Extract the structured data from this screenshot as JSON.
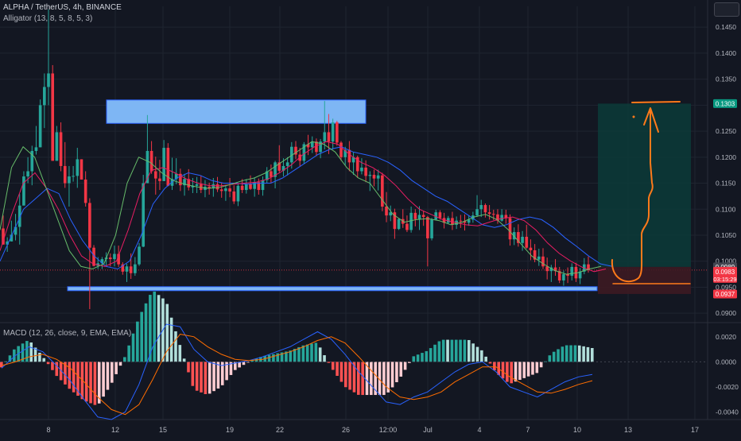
{
  "header": {
    "symbol": "ALPHA / TetherUS, 4h, BINANCE",
    "indicator": "Alligator (13, 8, 5, 8, 5, 3)"
  },
  "macd_label": "MACD (12, 26, close, 9, EMA, EMA)",
  "colors": {
    "background": "#131722",
    "up": "#26a69a",
    "down": "#f23645",
    "jaw": "#2962ff",
    "teeth": "#e91e63",
    "lips": "#66bb6a",
    "zone": "#7eb6f4",
    "profit": "#0c3b38",
    "loss": "#3d1a22",
    "drawing": "#ff7a1a"
  },
  "price_badges": {
    "target": "0.1303",
    "current": "0.0989",
    "last": "0.0983",
    "countdown": "03:15:29",
    "stop": "0.0937"
  },
  "chart_data": {
    "type": "candlestick",
    "price_axis": {
      "ticks": [
        "0.1450",
        "0.1400",
        "0.1350",
        "0.1300",
        "0.1250",
        "0.1200",
        "0.1150",
        "0.1100",
        "0.1050",
        "0.1000",
        "0.0950",
        "0.0900"
      ],
      "range": [
        0.0885,
        0.149
      ]
    },
    "macd_axis": {
      "ticks": [
        "0.0020",
        "0.0000",
        "-0.0020",
        "-0.0040"
      ],
      "range": [
        -0.0046,
        0.003
      ]
    },
    "time_axis": [
      "8",
      "12",
      "15",
      "19",
      "22",
      "26",
      "12:00",
      "Jul",
      "4",
      "7",
      "10",
      "13",
      "17"
    ],
    "candles": [
      [
        0.1063,
        0.1088,
        0.1032,
        0.1032
      ],
      [
        0.1032,
        0.1046,
        0.1018,
        0.1038
      ],
      [
        0.1038,
        0.1078,
        0.1038,
        0.1051
      ],
      [
        0.1051,
        0.1091,
        0.104,
        0.1066
      ],
      [
        0.1066,
        0.1129,
        0.1032,
        0.1107
      ],
      [
        0.1107,
        0.1173,
        0.1107,
        0.1163
      ],
      [
        0.1163,
        0.12,
        0.115,
        0.1173
      ],
      [
        0.1173,
        0.1222,
        0.1146,
        0.1212
      ],
      [
        0.1212,
        0.126,
        0.1205,
        0.1219
      ],
      [
        0.1219,
        0.1311,
        0.1219,
        0.13
      ],
      [
        0.13,
        0.1361,
        0.1256,
        0.1335
      ],
      [
        0.1335,
        0.1484,
        0.13,
        0.1361
      ],
      [
        0.1361,
        0.1377,
        0.1193,
        0.1193
      ],
      [
        0.1193,
        0.126,
        0.1193,
        0.1248
      ],
      [
        0.1248,
        0.1267,
        0.1173,
        0.1183
      ],
      [
        0.1183,
        0.1229,
        0.1141,
        0.115
      ],
      [
        0.115,
        0.1183,
        0.1105,
        0.1163
      ],
      [
        0.1163,
        0.1183,
        0.1153,
        0.1164
      ],
      [
        0.1164,
        0.1218,
        0.1141,
        0.1196
      ],
      [
        0.1196,
        0.1196,
        0.1157,
        0.1157
      ],
      [
        0.1157,
        0.1173,
        0.1105,
        0.1112
      ],
      [
        0.1112,
        0.1121,
        0.0908,
        0.1026
      ],
      [
        0.1026,
        0.1031,
        0.099,
        0.0991
      ],
      [
        0.0991,
        0.1008,
        0.0985,
        0.0996
      ],
      [
        0.0996,
        0.1008,
        0.0985,
        0.1004
      ],
      [
        0.1004,
        0.1017,
        0.0992,
        0.1007
      ],
      [
        0.1007,
        0.1015,
        0.099,
        0.1004
      ],
      [
        0.1004,
        0.103,
        0.099,
        0.1014
      ],
      [
        0.1014,
        0.103,
        0.0989,
        0.0994
      ],
      [
        0.0994,
        0.0998,
        0.0974,
        0.098
      ],
      [
        0.098,
        0.0995,
        0.096,
        0.099
      ],
      [
        0.099,
        0.1015,
        0.0966,
        0.0977
      ],
      [
        0.0977,
        0.1008,
        0.0972,
        0.0994
      ],
      [
        0.0994,
        0.1035,
        0.0991,
        0.1028
      ],
      [
        0.1028,
        0.1166,
        0.1027,
        0.115
      ],
      [
        0.115,
        0.1281,
        0.115,
        0.1212
      ],
      [
        0.1212,
        0.1231,
        0.1168,
        0.1173
      ],
      [
        0.1173,
        0.1201,
        0.1128,
        0.1159
      ],
      [
        0.1159,
        0.1195,
        0.1137,
        0.1154
      ],
      [
        0.1154,
        0.1233,
        0.1154,
        0.1218
      ],
      [
        0.1218,
        0.1227,
        0.1144,
        0.1145
      ],
      [
        0.1145,
        0.1199,
        0.1137,
        0.1158
      ],
      [
        0.1158,
        0.1198,
        0.1148,
        0.1168
      ],
      [
        0.1168,
        0.1178,
        0.1135,
        0.1146
      ],
      [
        0.1146,
        0.1168,
        0.1126,
        0.1158
      ],
      [
        0.1158,
        0.1177,
        0.1136,
        0.1142
      ],
      [
        0.1142,
        0.116,
        0.1131,
        0.1145
      ],
      [
        0.1145,
        0.1162,
        0.1131,
        0.1148
      ],
      [
        0.1148,
        0.1165,
        0.1131,
        0.1137
      ],
      [
        0.1137,
        0.1156,
        0.1123,
        0.1143
      ],
      [
        0.1143,
        0.1151,
        0.1128,
        0.114
      ],
      [
        0.114,
        0.116,
        0.1124,
        0.1148
      ],
      [
        0.1148,
        0.1162,
        0.1133,
        0.1138
      ],
      [
        0.1138,
        0.1151,
        0.1122,
        0.1135
      ],
      [
        0.1135,
        0.1147,
        0.1116,
        0.114
      ],
      [
        0.114,
        0.116,
        0.1123,
        0.1134
      ],
      [
        0.1134,
        0.1146,
        0.111,
        0.1115
      ],
      [
        0.1115,
        0.1148,
        0.1106,
        0.1145
      ],
      [
        0.1145,
        0.1158,
        0.1131,
        0.1137
      ],
      [
        0.1137,
        0.1158,
        0.113,
        0.1148
      ],
      [
        0.1148,
        0.1165,
        0.1137,
        0.1139
      ],
      [
        0.1139,
        0.1161,
        0.1124,
        0.1152
      ],
      [
        0.1152,
        0.1159,
        0.1128,
        0.1137
      ],
      [
        0.1137,
        0.1163,
        0.1126,
        0.1156
      ],
      [
        0.1156,
        0.1181,
        0.115,
        0.1173
      ],
      [
        0.1173,
        0.1186,
        0.115,
        0.1162
      ],
      [
        0.1162,
        0.1193,
        0.114,
        0.119
      ],
      [
        0.119,
        0.1223,
        0.1171,
        0.1174
      ],
      [
        0.1174,
        0.1198,
        0.1163,
        0.1183
      ],
      [
        0.1183,
        0.12,
        0.1165,
        0.119
      ],
      [
        0.119,
        0.1229,
        0.1178,
        0.122
      ],
      [
        0.122,
        0.1231,
        0.1196,
        0.1205
      ],
      [
        0.1205,
        0.1218,
        0.1183,
        0.1193
      ],
      [
        0.1193,
        0.1229,
        0.1187,
        0.1225
      ],
      [
        0.1225,
        0.1243,
        0.1204,
        0.1219
      ],
      [
        0.1219,
        0.124,
        0.1208,
        0.123
      ],
      [
        0.123,
        0.1236,
        0.1202,
        0.121
      ],
      [
        0.121,
        0.1235,
        0.1198,
        0.123
      ],
      [
        0.123,
        0.1308,
        0.1215,
        0.1248
      ],
      [
        0.1248,
        0.1283,
        0.1206,
        0.123
      ],
      [
        0.123,
        0.1274,
        0.1215,
        0.1267
      ],
      [
        0.1267,
        0.127,
        0.1222,
        0.1228
      ],
      [
        0.1228,
        0.1231,
        0.1193,
        0.12
      ],
      [
        0.12,
        0.122,
        0.1185,
        0.1214
      ],
      [
        0.1214,
        0.1231,
        0.1173,
        0.119
      ],
      [
        0.119,
        0.1209,
        0.1166,
        0.12
      ],
      [
        0.12,
        0.1203,
        0.116,
        0.1173
      ],
      [
        0.1173,
        0.1198,
        0.1167,
        0.118
      ],
      [
        0.118,
        0.1194,
        0.1152,
        0.1164
      ],
      [
        0.1164,
        0.1173,
        0.1135,
        0.1166
      ],
      [
        0.1166,
        0.1176,
        0.1144,
        0.1159
      ],
      [
        0.1159,
        0.1176,
        0.1136,
        0.1165
      ],
      [
        0.1165,
        0.117,
        0.1096,
        0.1105
      ],
      [
        0.1105,
        0.1133,
        0.1075,
        0.1088
      ],
      [
        0.1088,
        0.1107,
        0.1077,
        0.1094
      ],
      [
        0.1094,
        0.1101,
        0.1043,
        0.1062
      ],
      [
        0.1062,
        0.1083,
        0.106,
        0.1081
      ],
      [
        0.1081,
        0.11,
        0.1064,
        0.1072
      ],
      [
        0.1072,
        0.1088,
        0.1056,
        0.106
      ],
      [
        0.106,
        0.1105,
        0.1055,
        0.1093
      ],
      [
        0.1093,
        0.11,
        0.1067,
        0.1081
      ],
      [
        0.1081,
        0.1106,
        0.106,
        0.1089
      ],
      [
        0.1089,
        0.1097,
        0.1068,
        0.1085
      ],
      [
        0.1085,
        0.1087,
        0.099,
        0.1044
      ],
      [
        0.1044,
        0.1083,
        0.104,
        0.108
      ],
      [
        0.108,
        0.1099,
        0.1079,
        0.1094
      ],
      [
        0.1094,
        0.1098,
        0.108,
        0.1083
      ],
      [
        0.1083,
        0.1093,
        0.1063,
        0.1074
      ],
      [
        0.1074,
        0.1087,
        0.1072,
        0.1083
      ],
      [
        0.1083,
        0.1095,
        0.106,
        0.107
      ],
      [
        0.107,
        0.1086,
        0.1062,
        0.1078
      ],
      [
        0.1078,
        0.1089,
        0.1064,
        0.1077
      ],
      [
        0.1077,
        0.109,
        0.1059,
        0.1074
      ],
      [
        0.1074,
        0.1088,
        0.1068,
        0.108
      ],
      [
        0.108,
        0.1095,
        0.1074,
        0.1088
      ],
      [
        0.1088,
        0.1127,
        0.1085,
        0.11
      ],
      [
        0.11,
        0.1118,
        0.1085,
        0.1108
      ],
      [
        0.1108,
        0.1111,
        0.1084,
        0.1094
      ],
      [
        0.1094,
        0.1108,
        0.108,
        0.1091
      ],
      [
        0.1091,
        0.1099,
        0.1079,
        0.109
      ],
      [
        0.109,
        0.11,
        0.1072,
        0.1078
      ],
      [
        0.1078,
        0.11,
        0.1076,
        0.1089
      ],
      [
        0.1089,
        0.1099,
        0.1072,
        0.1083
      ],
      [
        0.1083,
        0.109,
        0.103,
        0.1042
      ],
      [
        0.1042,
        0.1065,
        0.1031,
        0.1056
      ],
      [
        0.1056,
        0.1071,
        0.1028,
        0.1035
      ],
      [
        0.1035,
        0.1058,
        0.102,
        0.1047
      ],
      [
        0.1047,
        0.107,
        0.1024,
        0.1026
      ],
      [
        0.1026,
        0.1042,
        0.1002,
        0.1021
      ],
      [
        0.1021,
        0.1033,
        0.0998,
        0.1003
      ],
      [
        0.1003,
        0.1024,
        0.0991,
        0.1009
      ],
      [
        0.1009,
        0.1025,
        0.0985,
        0.099
      ],
      [
        0.099,
        0.1007,
        0.0965,
        0.0981
      ],
      [
        0.0981,
        0.0993,
        0.096,
        0.0988
      ],
      [
        0.0988,
        0.1004,
        0.0972,
        0.0981
      ],
      [
        0.0981,
        0.0989,
        0.0958,
        0.0963
      ],
      [
        0.0963,
        0.0982,
        0.0953,
        0.0975
      ],
      [
        0.0975,
        0.0988,
        0.0958,
        0.0972
      ],
      [
        0.0972,
        0.0996,
        0.0963,
        0.0989
      ],
      [
        0.0989,
        0.0997,
        0.096,
        0.0967
      ],
      [
        0.0967,
        0.0987,
        0.0956,
        0.098
      ],
      [
        0.098,
        0.1006,
        0.0975,
        0.0994
      ],
      [
        0.0994,
        0.1009,
        0.0978,
        0.0983
      ]
    ],
    "alligator": {
      "jaw": [
        0.1,
        0.105,
        0.11,
        0.112,
        0.114,
        0.113,
        0.108,
        0.104,
        0.101,
        0.099,
        0.0985,
        0.1,
        0.105,
        0.111,
        0.114,
        0.116,
        0.117,
        0.1165,
        0.1155,
        0.115,
        0.115,
        0.1148,
        0.115,
        0.115,
        0.116,
        0.1175,
        0.119,
        0.1205,
        0.1215,
        0.122,
        0.121,
        0.1205,
        0.12,
        0.119,
        0.1175,
        0.1155,
        0.114,
        0.1125,
        0.1115,
        0.11,
        0.1085,
        0.107,
        0.1065,
        0.107,
        0.108,
        0.1085,
        0.108,
        0.1065,
        0.1045,
        0.1028,
        0.101,
        0.0995,
        0.099
      ],
      "teeth": [
        0.102,
        0.109,
        0.115,
        0.117,
        0.114,
        0.11,
        0.105,
        0.101,
        0.0995,
        0.099,
        0.1,
        0.106,
        0.113,
        0.1175,
        0.118,
        0.117,
        0.1158,
        0.115,
        0.1145,
        0.1145,
        0.1148,
        0.115,
        0.1152,
        0.1158,
        0.117,
        0.1185,
        0.1205,
        0.122,
        0.123,
        0.1225,
        0.1205,
        0.119,
        0.118,
        0.1165,
        0.1145,
        0.112,
        0.11,
        0.109,
        0.108,
        0.1075,
        0.107,
        0.1068,
        0.1075,
        0.1082,
        0.1085,
        0.1078,
        0.106,
        0.1035,
        0.1015,
        0.1,
        0.0988,
        0.098,
        0.0985
      ],
      "lips": [
        0.106,
        0.118,
        0.122,
        0.12,
        0.114,
        0.108,
        0.102,
        0.099,
        0.0985,
        0.0995,
        0.105,
        0.115,
        0.12,
        0.119,
        0.117,
        0.1155,
        0.1148,
        0.1143,
        0.114,
        0.1142,
        0.1148,
        0.1155,
        0.116,
        0.117,
        0.1185,
        0.12,
        0.1215,
        0.123,
        0.1225,
        0.121,
        0.118,
        0.116,
        0.115,
        0.112,
        0.109,
        0.1075,
        0.108,
        0.1082,
        0.1078,
        0.107,
        0.1075,
        0.1085,
        0.109,
        0.108,
        0.106,
        0.1035,
        0.101,
        0.0995,
        0.0982,
        0.0975,
        0.0978,
        0.0985,
        0.099
      ]
    },
    "macd": {
      "macd": [
        -0.0005,
        0.0005,
        0.0012,
        0.0008,
        -0.0003,
        -0.0015,
        -0.003,
        -0.0044,
        -0.0046,
        -0.004,
        -0.0018,
        0.0012,
        0.003,
        0.0028,
        0.001,
        0.0,
        -0.0003,
        -0.0001,
        0.0001,
        0.0004,
        0.0008,
        0.0012,
        0.0018,
        0.0024,
        0.0018,
        0.0006,
        -0.0008,
        -0.002,
        -0.0032,
        -0.0034,
        -0.0028,
        -0.0024,
        -0.0016,
        -0.0008,
        -0.0002,
        0.0,
        -0.0008,
        -0.002,
        -0.0024,
        -0.0028,
        -0.0022,
        -0.0016,
        -0.0012,
        -0.001
      ],
      "signal": [
        -0.0003,
        0.0,
        0.0004,
        0.0006,
        0.0002,
        -0.0005,
        -0.0016,
        -0.0028,
        -0.0038,
        -0.0042,
        -0.0034,
        -0.0014,
        0.0008,
        0.0022,
        0.002,
        0.0012,
        0.0006,
        0.0002,
        0.0001,
        0.0002,
        0.0005,
        0.0008,
        0.0012,
        0.0017,
        0.002,
        0.0015,
        0.0004,
        -0.0008,
        -0.002,
        -0.0028,
        -0.003,
        -0.0028,
        -0.0024,
        -0.0016,
        -0.001,
        -0.0004,
        -0.0004,
        -0.0012,
        -0.0018,
        -0.0024,
        -0.0025,
        -0.0022,
        -0.0018,
        -0.0015
      ]
    },
    "resistance_zone": [
      0.1265,
      0.131
    ],
    "support_zone": [
      0.0945,
      0.0951
    ],
    "position": {
      "entry": 0.0989,
      "target": 0.1303,
      "stop": 0.0937
    },
    "last_price_line": 0.0983
  }
}
